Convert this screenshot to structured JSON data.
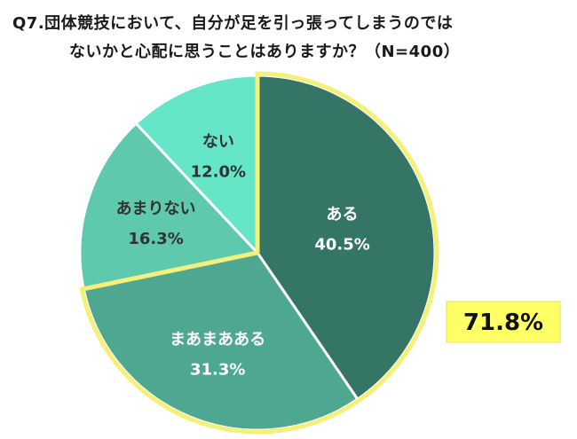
{
  "title": {
    "line1": "Q7.団体競技において、自分が足を引っ張ってしまうのでは",
    "line2": "ないかと心配に思うことはありますか？（N=400）"
  },
  "chart_data": {
    "type": "pie",
    "categories": [
      "ある",
      "まあまあある",
      "あまりない",
      "ない"
    ],
    "values": [
      40.5,
      31.3,
      16.3,
      12.0
    ],
    "value_labels": [
      "40.5%",
      "31.3%",
      "16.3%",
      "12.0%"
    ],
    "colors": [
      "#347565",
      "#4ea891",
      "#5ec9ad",
      "#66e6c8"
    ],
    "highlight": {
      "categories": [
        "ある",
        "まあまあある"
      ],
      "total_label": "71.8%",
      "outline_color": "#f5f07a",
      "box_fill": "#ffff66"
    }
  }
}
